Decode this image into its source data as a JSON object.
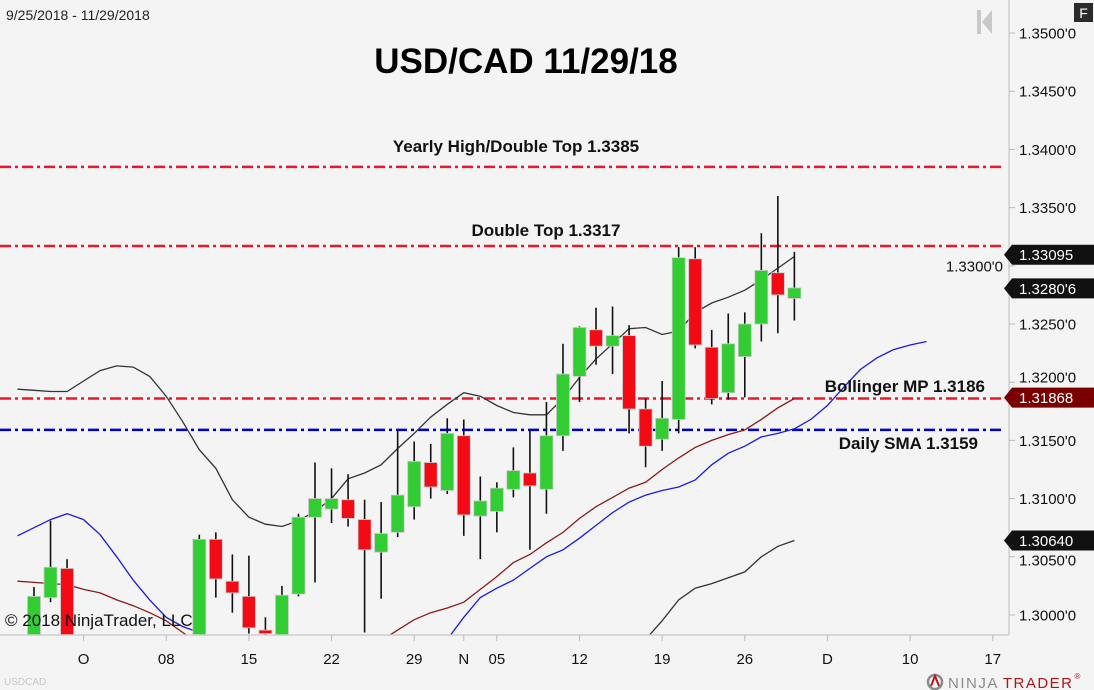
{
  "header": {
    "date_range": "9/25/2018 - 11/29/2018",
    "title": "USD/CAD 11/29/18",
    "copyright": "© 2018 NinjaTrader, LLC",
    "instrument": "USDCAD",
    "f_button": "F",
    "logo_text_1": "NINJA",
    "logo_text_2": "TRADER",
    "logo_mark": "®",
    "scroll_start_icon": "skip-to-start-icon"
  },
  "chart_data": {
    "type": "candlestick",
    "title": "USD/CAD 11/29/18",
    "ylim": [
      1.298,
      1.3528
    ],
    "y_ticks": [
      "1.3500'0",
      "1.3450'0",
      "1.3400'0",
      "1.3350'0",
      "1.3300'0",
      "1.3250'0",
      "1.3200'0",
      "1.3150'0",
      "1.3100'0",
      "1.3050'0",
      "1.3000'0"
    ],
    "y_tick_values": [
      1.35,
      1.345,
      1.34,
      1.335,
      1.33,
      1.325,
      1.32,
      1.315,
      1.31,
      1.305,
      1.3
    ],
    "x_ticks": [
      {
        "date": "2018-10-01",
        "label": "O"
      },
      {
        "date": "2018-10-08",
        "label": "08"
      },
      {
        "date": "2018-10-15",
        "label": "15"
      },
      {
        "date": "2018-10-22",
        "label": "22"
      },
      {
        "date": "2018-10-29",
        "label": "29"
      },
      {
        "date": "2018-11-01",
        "label": "N"
      },
      {
        "date": "2018-11-05",
        "label": "05"
      },
      {
        "date": "2018-11-12",
        "label": "12"
      },
      {
        "date": "2018-11-19",
        "label": "19"
      },
      {
        "date": "2018-11-26",
        "label": "26"
      },
      {
        "date": "2018-12-03",
        "label": "D"
      },
      {
        "date": "2018-12-10",
        "label": "10"
      },
      {
        "date": "2018-12-17",
        "label": "17"
      }
    ],
    "colors": {
      "up": "#32cd32",
      "down": "#f20a14",
      "wick": "#111111",
      "upper_band": "#333333",
      "middle_band": "#8b1a1a",
      "lower_band": "#333333",
      "sma": "#1a1ae6",
      "level_red": "#e8182e",
      "level_blue": "#0000cc"
    },
    "candles": [
      {
        "date": "2018-09-26",
        "o": 1.2975,
        "h": 1.3024,
        "l": 1.297,
        "c": 1.3016
      },
      {
        "date": "2018-09-27",
        "o": 1.3015,
        "h": 1.3081,
        "l": 1.3011,
        "c": 1.3041
      },
      {
        "date": "2018-09-28",
        "o": 1.304,
        "h": 1.3048,
        "l": 1.2965,
        "c": 1.2975
      },
      {
        "date": "2018-10-10",
        "o": 1.297,
        "h": 1.3069,
        "l": 1.2965,
        "c": 1.3065
      },
      {
        "date": "2018-10-11",
        "o": 1.3065,
        "h": 1.3071,
        "l": 1.3015,
        "c": 1.3031
      },
      {
        "date": "2018-10-12",
        "o": 1.3029,
        "h": 1.3052,
        "l": 1.3002,
        "c": 1.3019
      },
      {
        "date": "2018-10-15",
        "o": 1.3016,
        "h": 1.3051,
        "l": 1.2984,
        "c": 1.2989
      },
      {
        "date": "2018-10-16",
        "o": 1.2987,
        "h": 1.2998,
        "l": 1.298,
        "c": 1.2984
      },
      {
        "date": "2018-10-17",
        "o": 1.298,
        "h": 1.3025,
        "l": 1.2975,
        "c": 1.3017
      },
      {
        "date": "2018-10-18",
        "o": 1.3018,
        "h": 1.3087,
        "l": 1.3016,
        "c": 1.3084
      },
      {
        "date": "2018-10-19",
        "o": 1.3084,
        "h": 1.3131,
        "l": 1.3028,
        "c": 1.31
      },
      {
        "date": "2018-10-22",
        "o": 1.3091,
        "h": 1.3126,
        "l": 1.3079,
        "c": 1.31
      },
      {
        "date": "2018-10-23",
        "o": 1.3099,
        "h": 1.3121,
        "l": 1.3076,
        "c": 1.3083
      },
      {
        "date": "2018-10-24",
        "o": 1.3082,
        "h": 1.3099,
        "l": 1.2985,
        "c": 1.3056
      },
      {
        "date": "2018-10-25",
        "o": 1.3054,
        "h": 1.3097,
        "l": 1.3014,
        "c": 1.307
      },
      {
        "date": "2018-10-26",
        "o": 1.3071,
        "h": 1.3159,
        "l": 1.3067,
        "c": 1.3103
      },
      {
        "date": "2018-10-29",
        "o": 1.3093,
        "h": 1.3149,
        "l": 1.3082,
        "c": 1.3132
      },
      {
        "date": "2018-10-30",
        "o": 1.3131,
        "h": 1.3147,
        "l": 1.31,
        "c": 1.311
      },
      {
        "date": "2018-10-31",
        "o": 1.3107,
        "h": 1.3169,
        "l": 1.3104,
        "c": 1.3156
      },
      {
        "date": "2018-11-01",
        "o": 1.3154,
        "h": 1.3168,
        "l": 1.3068,
        "c": 1.3086
      },
      {
        "date": "2018-11-02",
        "o": 1.3085,
        "h": 1.3119,
        "l": 1.3048,
        "c": 1.3098
      },
      {
        "date": "2018-11-05",
        "o": 1.3089,
        "h": 1.3114,
        "l": 1.3071,
        "c": 1.3109
      },
      {
        "date": "2018-11-06",
        "o": 1.3108,
        "h": 1.3144,
        "l": 1.3101,
        "c": 1.3124
      },
      {
        "date": "2018-11-07",
        "o": 1.3122,
        "h": 1.3159,
        "l": 1.3056,
        "c": 1.3111
      },
      {
        "date": "2018-11-08",
        "o": 1.3108,
        "h": 1.3183,
        "l": 1.3087,
        "c": 1.3154
      },
      {
        "date": "2018-11-09",
        "o": 1.3154,
        "h": 1.3233,
        "l": 1.3141,
        "c": 1.3207
      },
      {
        "date": "2018-11-12",
        "o": 1.3205,
        "h": 1.3248,
        "l": 1.3183,
        "c": 1.3247
      },
      {
        "date": "2018-11-13",
        "o": 1.3245,
        "h": 1.3264,
        "l": 1.3215,
        "c": 1.3231
      },
      {
        "date": "2018-11-14",
        "o": 1.3231,
        "h": 1.3265,
        "l": 1.3207,
        "c": 1.324
      },
      {
        "date": "2018-11-15",
        "o": 1.324,
        "h": 1.3249,
        "l": 1.3156,
        "c": 1.3177
      },
      {
        "date": "2018-11-16",
        "o": 1.3177,
        "h": 1.3186,
        "l": 1.3127,
        "c": 1.3145
      },
      {
        "date": "2018-11-19",
        "o": 1.3151,
        "h": 1.3201,
        "l": 1.3141,
        "c": 1.3169
      },
      {
        "date": "2018-11-20",
        "o": 1.3168,
        "h": 1.3316,
        "l": 1.3156,
        "c": 1.3307
      },
      {
        "date": "2018-11-21",
        "o": 1.3306,
        "h": 1.3316,
        "l": 1.3229,
        "c": 1.3232
      },
      {
        "date": "2018-11-22",
        "o": 1.323,
        "h": 1.3245,
        "l": 1.3181,
        "c": 1.3186
      },
      {
        "date": "2018-11-23",
        "o": 1.3191,
        "h": 1.3259,
        "l": 1.3185,
        "c": 1.3233
      },
      {
        "date": "2018-11-26",
        "o": 1.3222,
        "h": 1.326,
        "l": 1.3187,
        "c": 1.325
      },
      {
        "date": "2018-11-27",
        "o": 1.325,
        "h": 1.3328,
        "l": 1.3235,
        "c": 1.3296
      },
      {
        "date": "2018-11-28",
        "o": 1.3294,
        "h": 1.336,
        "l": 1.3242,
        "c": 1.3275
      },
      {
        "date": "2018-11-29",
        "o": 1.3272,
        "h": 1.3312,
        "l": 1.3253,
        "c": 1.3281
      }
    ],
    "lines": [
      {
        "id": "upper_band",
        "color_key": "upper_band",
        "points": [
          [
            "2018-09-25",
            1.3194
          ],
          [
            "2018-09-26",
            1.3193
          ],
          [
            "2018-09-27",
            1.3192
          ],
          [
            "2018-09-28",
            1.3192
          ],
          [
            "2018-10-01",
            1.3201
          ],
          [
            "2018-10-02",
            1.321
          ],
          [
            "2018-10-03",
            1.3214
          ],
          [
            "2018-10-04",
            1.3213
          ],
          [
            "2018-10-05",
            1.3205
          ],
          [
            "2018-10-08",
            1.3188
          ],
          [
            "2018-10-09",
            1.3166
          ],
          [
            "2018-10-10",
            1.3142
          ],
          [
            "2018-10-11",
            1.3126
          ],
          [
            "2018-10-12",
            1.3099
          ],
          [
            "2018-10-15",
            1.3084
          ],
          [
            "2018-10-16",
            1.3078
          ],
          [
            "2018-10-17",
            1.3076
          ],
          [
            "2018-10-18",
            1.3081
          ],
          [
            "2018-10-19",
            1.3089
          ],
          [
            "2018-10-22",
            1.31
          ],
          [
            "2018-10-23",
            1.3117
          ],
          [
            "2018-10-24",
            1.3122
          ],
          [
            "2018-10-25",
            1.3129
          ],
          [
            "2018-10-26",
            1.3143
          ],
          [
            "2018-10-29",
            1.3156
          ],
          [
            "2018-10-30",
            1.317
          ],
          [
            "2018-10-31",
            1.3181
          ],
          [
            "2018-11-01",
            1.3191
          ],
          [
            "2018-11-02",
            1.3188
          ],
          [
            "2018-11-05",
            1.318
          ],
          [
            "2018-11-06",
            1.3174
          ],
          [
            "2018-11-07",
            1.3172
          ],
          [
            "2018-11-08",
            1.3172
          ],
          [
            "2018-11-09",
            1.3186
          ],
          [
            "2018-11-12",
            1.3204
          ],
          [
            "2018-11-13",
            1.322
          ],
          [
            "2018-11-14",
            1.3233
          ],
          [
            "2018-11-15",
            1.3246
          ],
          [
            "2018-11-16",
            1.3247
          ],
          [
            "2018-11-19",
            1.3241
          ],
          [
            "2018-11-20",
            1.3244
          ],
          [
            "2018-11-21",
            1.326
          ],
          [
            "2018-11-22",
            1.3268
          ],
          [
            "2018-11-23",
            1.3273
          ],
          [
            "2018-11-26",
            1.3279
          ],
          [
            "2018-11-27",
            1.3288
          ],
          [
            "2018-11-28",
            1.3298
          ],
          [
            "2018-11-29",
            1.3308
          ]
        ]
      },
      {
        "id": "middle_band",
        "color_key": "middle_band",
        "points": [
          [
            "2018-09-25",
            1.3029
          ],
          [
            "2018-09-26",
            1.3028
          ],
          [
            "2018-09-27",
            1.3027
          ],
          [
            "2018-09-28",
            1.3026
          ],
          [
            "2018-10-01",
            1.3022
          ],
          [
            "2018-10-02",
            1.3019
          ],
          [
            "2018-10-03",
            1.3013
          ],
          [
            "2018-10-04",
            1.3008
          ],
          [
            "2018-10-05",
            1.3002
          ],
          [
            "2018-10-08",
            1.2995
          ],
          [
            "2018-10-09",
            1.2985
          ],
          [
            "2018-10-10",
            1.2975
          ],
          [
            "2018-10-25",
            1.2978
          ],
          [
            "2018-10-26",
            1.2987
          ],
          [
            "2018-10-29",
            1.2996
          ],
          [
            "2018-10-30",
            1.3002
          ],
          [
            "2018-10-31",
            1.3006
          ],
          [
            "2018-11-01",
            1.3011
          ],
          [
            "2018-11-02",
            1.3022
          ],
          [
            "2018-11-05",
            1.3033
          ],
          [
            "2018-11-06",
            1.3045
          ],
          [
            "2018-11-07",
            1.3052
          ],
          [
            "2018-11-08",
            1.3062
          ],
          [
            "2018-11-09",
            1.3071
          ],
          [
            "2018-11-12",
            1.3083
          ],
          [
            "2018-11-13",
            1.3093
          ],
          [
            "2018-11-14",
            1.3101
          ],
          [
            "2018-11-15",
            1.3109
          ],
          [
            "2018-11-16",
            1.3114
          ],
          [
            "2018-11-19",
            1.3125
          ],
          [
            "2018-11-20",
            1.3135
          ],
          [
            "2018-11-21",
            1.3144
          ],
          [
            "2018-11-22",
            1.315
          ],
          [
            "2018-11-23",
            1.3155
          ],
          [
            "2018-11-26",
            1.3159
          ],
          [
            "2018-11-27",
            1.3168
          ],
          [
            "2018-11-28",
            1.3178
          ],
          [
            "2018-11-29",
            1.3186
          ]
        ]
      },
      {
        "id": "lower_band",
        "color_key": "lower_band",
        "points": [
          [
            "2018-11-16",
            1.2979
          ],
          [
            "2018-11-19",
            1.2995
          ],
          [
            "2018-11-20",
            1.3013
          ],
          [
            "2018-11-21",
            1.3023
          ],
          [
            "2018-11-22",
            1.3027
          ],
          [
            "2018-11-23",
            1.3032
          ],
          [
            "2018-11-26",
            1.3037
          ],
          [
            "2018-11-27",
            1.305
          ],
          [
            "2018-11-28",
            1.3059
          ],
          [
            "2018-11-29",
            1.3064
          ]
        ]
      },
      {
        "id": "sma",
        "color_key": "sma",
        "points": [
          [
            "2018-09-25",
            1.3068
          ],
          [
            "2018-09-27",
            1.3082
          ],
          [
            "2018-09-28",
            1.3087
          ],
          [
            "2018-10-01",
            1.3082
          ],
          [
            "2018-10-02",
            1.3069
          ],
          [
            "2018-10-03",
            1.305
          ],
          [
            "2018-10-04",
            1.303
          ],
          [
            "2018-10-05",
            1.3013
          ],
          [
            "2018-10-08",
            1.2998
          ],
          [
            "2018-10-09",
            1.299
          ],
          [
            "2018-10-10",
            1.2985
          ],
          [
            "2018-10-11",
            1.2975
          ],
          [
            "2018-10-31",
            1.2979
          ],
          [
            "2018-11-01",
            1.2998
          ],
          [
            "2018-11-02",
            1.3015
          ],
          [
            "2018-11-05",
            1.3023
          ],
          [
            "2018-11-06",
            1.303
          ],
          [
            "2018-11-07",
            1.304
          ],
          [
            "2018-11-08",
            1.305
          ],
          [
            "2018-11-09",
            1.3056
          ],
          [
            "2018-11-12",
            1.3066
          ],
          [
            "2018-11-13",
            1.3077
          ],
          [
            "2018-11-14",
            1.3088
          ],
          [
            "2018-11-15",
            1.3097
          ],
          [
            "2018-11-16",
            1.3103
          ],
          [
            "2018-11-19",
            1.3107
          ],
          [
            "2018-11-20",
            1.311
          ],
          [
            "2018-11-21",
            1.3116
          ],
          [
            "2018-11-22",
            1.3129
          ],
          [
            "2018-11-23",
            1.3139
          ],
          [
            "2018-11-26",
            1.3145
          ],
          [
            "2018-11-27",
            1.3153
          ],
          [
            "2018-11-28",
            1.3156
          ],
          [
            "2018-11-29",
            1.316
          ],
          [
            "2018-11-30",
            1.3168
          ],
          [
            "2018-12-03",
            1.318
          ],
          [
            "2018-12-04",
            1.3196
          ],
          [
            "2018-12-05",
            1.3211
          ],
          [
            "2018-12-06",
            1.3221
          ],
          [
            "2018-12-07",
            1.3228
          ],
          [
            "2018-12-10",
            1.3232
          ],
          [
            "2018-12-11",
            1.3235
          ]
        ]
      }
    ],
    "levels": [
      {
        "label": "Yearly High/Double Top 1.3385",
        "value": 1.3385,
        "color_key": "level_red"
      },
      {
        "label": "Double Top 1.3317",
        "value": 1.3317,
        "color_key": "level_red"
      },
      {
        "label": "Bollinger MP 1.3186",
        "value": 1.3186,
        "color_key": "level_red"
      },
      {
        "label": "Daily SMA 1.3159",
        "value": 1.3159,
        "color_key": "level_blue"
      }
    ],
    "price_markers": [
      {
        "label": "1.33095",
        "value": 1.33095,
        "bg": "#111111"
      },
      {
        "label": "1.3280'6",
        "value": 1.32806,
        "bg": "#111111"
      },
      {
        "label": "1.31868",
        "value": 1.31868,
        "bg": "#7a0000"
      },
      {
        "label": "1.30640",
        "value": 1.3064,
        "bg": "#111111"
      }
    ]
  }
}
